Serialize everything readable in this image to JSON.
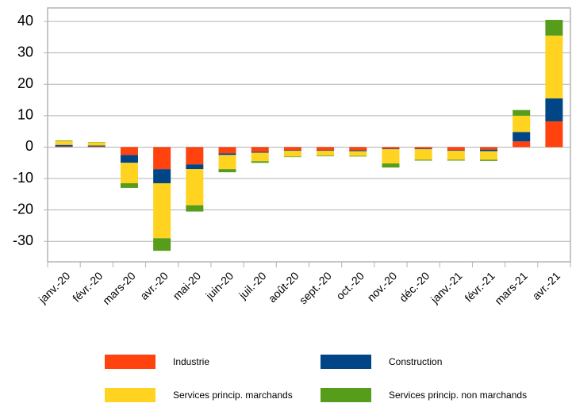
{
  "chart_data": {
    "type": "stacked_bar",
    "categories": [
      "janv.-20",
      "févr.-20",
      "mars-20",
      "avr.-20",
      "mai-20",
      "juin-20",
      "juil.-20",
      "août-20",
      "sept.-20",
      "oct.-20",
      "nov.-20",
      "déc.-20",
      "janv.-21",
      "févr.-21",
      "mars-21",
      "avr.-21"
    ],
    "series": [
      {
        "name": "Industrie",
        "color": "#ff420e",
        "values": [
          0.2,
          0.2,
          -2.5,
          -7,
          -5.5,
          -2,
          -1.5,
          -1,
          -1,
          -1,
          -0.5,
          -0.5,
          -1,
          -0.8,
          1.8,
          8.2
        ]
      },
      {
        "name": "Construction",
        "color": "#004586",
        "values": [
          0.5,
          0.3,
          -2.5,
          -4.5,
          -1.5,
          -0.5,
          -0.3,
          -0.2,
          -0.2,
          -0.3,
          -0.2,
          -0.2,
          -0.2,
          -0.5,
          3,
          7.3
        ]
      },
      {
        "name": "Services princip. marchands",
        "color": "#ffd320",
        "values": [
          1.2,
          1,
          -6.5,
          -17.5,
          -11.5,
          -4.5,
          -2.7,
          -1.8,
          -1.5,
          -1.5,
          -4.5,
          -3.3,
          -2.8,
          -2.7,
          5.2,
          20
        ]
      },
      {
        "name": "Services princip. non marchands",
        "color": "#579d1c",
        "values": [
          0.2,
          0.1,
          -1.5,
          -4,
          -2,
          -1,
          -0.5,
          -0.2,
          -0.2,
          -0.2,
          -1.3,
          -0.3,
          -0.3,
          -0.4,
          1.8,
          5
        ]
      }
    ],
    "ylim": [
      -36.5,
      44.3
    ],
    "yticks": [
      -30,
      -20,
      -10,
      0,
      10,
      20,
      30,
      40
    ],
    "grid": true
  }
}
